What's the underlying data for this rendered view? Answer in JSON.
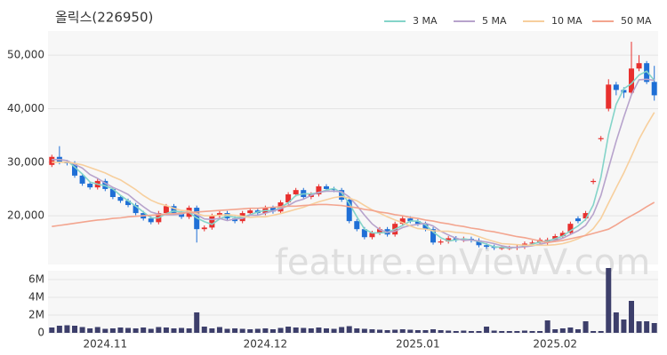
{
  "chart_data": [
    {
      "type": "candlestick",
      "title": "올릭스(226950)",
      "watermark": "feature.enViewV.com",
      "up_color": "#e8302e",
      "down_color": "#1f6fd6",
      "grid": true,
      "legend": "top-right",
      "ylim": [
        10900,
        54500
      ],
      "yticks": [
        {
          "value": 20000,
          "label": "20,000"
        },
        {
          "value": 30000,
          "label": "30,000"
        },
        {
          "value": 40000,
          "label": "40,000"
        },
        {
          "value": 50000,
          "label": "50,000"
        }
      ],
      "open": [
        29500,
        31000,
        30000,
        29800,
        27500,
        26000,
        25300,
        26500,
        25000,
        23500,
        22800,
        22000,
        20500,
        19500,
        18800,
        20500,
        21800,
        20500,
        19800,
        21500,
        17500,
        17800,
        20000,
        20500,
        19500,
        19000,
        20500,
        21000,
        20500,
        21500,
        20800,
        22500,
        24000,
        24800,
        23500,
        24000,
        25500,
        25000,
        24800,
        23000,
        19000,
        17500,
        16000,
        16800,
        17500,
        16500,
        18500,
        19500,
        19000,
        18500,
        17500,
        15000,
        15200,
        15800,
        15500,
        15700,
        15400,
        14500,
        14200,
        14000,
        14000,
        14000,
        14200,
        14800,
        15000,
        15000,
        15500,
        16200,
        16800,
        19500,
        19500,
        26300,
        34300,
        40000,
        44500,
        43500,
        43000,
        47500,
        48500,
        45000
      ],
      "high": [
        31400,
        33000,
        30400,
        30200,
        27900,
        26400,
        26900,
        26900,
        25400,
        23900,
        23200,
        22400,
        20900,
        19900,
        20900,
        22200,
        22200,
        20900,
        21900,
        21900,
        18200,
        20400,
        20900,
        20900,
        19900,
        20900,
        21400,
        21400,
        21900,
        21900,
        22900,
        24400,
        25200,
        25200,
        24400,
        25900,
        25900,
        25400,
        25200,
        23400,
        19400,
        17900,
        17200,
        17900,
        17900,
        18900,
        19900,
        19900,
        19400,
        18900,
        17900,
        15600,
        16200,
        16200,
        16100,
        16100,
        15800,
        14900,
        14600,
        14400,
        14400,
        14600,
        15200,
        15400,
        15900,
        15900,
        16600,
        17200,
        18900,
        19900,
        20900,
        26900,
        34900,
        45500,
        45000,
        44000,
        52500,
        50000,
        48900,
        48000
      ],
      "low": [
        29100,
        29600,
        29400,
        27100,
        25600,
        24900,
        24900,
        24600,
        23100,
        22400,
        21600,
        20100,
        19100,
        18400,
        18400,
        20100,
        20100,
        19400,
        19400,
        15000,
        17100,
        17400,
        19600,
        19100,
        18600,
        18600,
        20100,
        20100,
        20100,
        20400,
        20400,
        22100,
        23600,
        23100,
        23100,
        23600,
        24600,
        24400,
        22600,
        18600,
        17100,
        15600,
        15600,
        16400,
        16100,
        16100,
        18100,
        18600,
        18100,
        17100,
        14600,
        14600,
        14800,
        15100,
        15100,
        15000,
        14100,
        13800,
        13600,
        13600,
        13600,
        13600,
        13800,
        14400,
        14600,
        14600,
        15100,
        15800,
        16400,
        18600,
        19100,
        25900,
        33900,
        39500,
        42500,
        42000,
        42600,
        47000,
        44600,
        41500
      ],
      "close": [
        31000,
        30000,
        29800,
        27500,
        26000,
        25300,
        26500,
        25000,
        23500,
        22800,
        22000,
        20500,
        19500,
        18800,
        20500,
        21800,
        20500,
        19800,
        21500,
        17500,
        17800,
        20000,
        20500,
        19500,
        19000,
        20500,
        21000,
        20500,
        21500,
        20800,
        22500,
        24000,
        24800,
        23500,
        24000,
        25500,
        25000,
        24800,
        23000,
        19000,
        17500,
        16000,
        16800,
        17500,
        16500,
        18500,
        19500,
        19000,
        18500,
        17500,
        15000,
        15200,
        15800,
        15500,
        15700,
        15400,
        14500,
        14200,
        14000,
        14000,
        14000,
        14200,
        14800,
        15000,
        15500,
        15500,
        16200,
        16800,
        18500,
        19000,
        20500,
        26500,
        34500,
        44500,
        43500,
        43000,
        47500,
        48500,
        45000,
        42500
      ],
      "series": [
        {
          "name": "3 MA",
          "color": "#84d4c9",
          "values": [
            30500,
            30500,
            30300,
            29100,
            27800,
            26300,
            25900,
            25600,
            25000,
            23800,
            22800,
            21800,
            20700,
            19600,
            19600,
            20400,
            20900,
            20700,
            20600,
            19600,
            18900,
            18400,
            19400,
            20000,
            19700,
            19700,
            20200,
            20700,
            21000,
            20900,
            21600,
            22400,
            23800,
            24100,
            24100,
            24300,
            24800,
            25100,
            24300,
            22300,
            19800,
            17500,
            16800,
            16800,
            16900,
            17500,
            18200,
            19000,
            19000,
            18300,
            17000,
            15900,
            15300,
            15500,
            15700,
            15500,
            15200,
            14700,
            14200,
            14100,
            14000,
            14100,
            14300,
            14700,
            15100,
            15300,
            15700,
            16200,
            17200,
            18100,
            19300,
            22000,
            27200,
            35200,
            40800,
            43700,
            44700,
            46300,
            47000,
            45300
          ]
        },
        {
          "name": "5 MA",
          "color": "#b7a3cc",
          "values": [
            30500,
            30500,
            30300,
            29600,
            28900,
            27700,
            27000,
            26100,
            25300,
            24700,
            24000,
            22800,
            21700,
            20700,
            20300,
            20200,
            20200,
            20300,
            20800,
            20200,
            19400,
            19300,
            19500,
            19100,
            19400,
            19500,
            20100,
            20100,
            20500,
            20900,
            21300,
            21900,
            22700,
            23100,
            23800,
            24400,
            24600,
            24600,
            24500,
            23500,
            21900,
            20100,
            18500,
            17400,
            16900,
            17100,
            17800,
            18200,
            18400,
            18600,
            18100,
            17100,
            16400,
            15800,
            15400,
            15500,
            15300,
            15100,
            14800,
            14400,
            14100,
            14100,
            14200,
            14400,
            14700,
            15000,
            15400,
            15800,
            16500,
            17200,
            18200,
            20300,
            23800,
            28900,
            33900,
            38400,
            42600,
            45400,
            45500,
            45300
          ]
        },
        {
          "name": "10 MA",
          "color": "#f7cf9d",
          "values": [
            30000,
            30000,
            30000,
            29800,
            29500,
            29000,
            28500,
            28000,
            27300,
            26700,
            25800,
            24900,
            23800,
            22900,
            22300,
            21900,
            21400,
            21000,
            20900,
            20400,
            20000,
            20000,
            20100,
            20200,
            20100,
            19900,
            19700,
            19800,
            19800,
            20100,
            20400,
            20800,
            21200,
            21600,
            22100,
            22600,
            23000,
            23400,
            23600,
            23300,
            22800,
            21900,
            21100,
            20500,
            19800,
            19200,
            18700,
            18100,
            17600,
            17500,
            17200,
            17100,
            17100,
            16900,
            16800,
            16600,
            16100,
            15600,
            15200,
            14800,
            14700,
            14600,
            14500,
            14500,
            14500,
            14500,
            14600,
            14800,
            15200,
            15700,
            16400,
            17600,
            19500,
            22400,
            25200,
            28000,
            31100,
            34300,
            36900,
            39300
          ]
        },
        {
          "name": "50 MA",
          "color": "#f3a58f",
          "values": [
            18000,
            18200,
            18400,
            18600,
            18800,
            19000,
            19200,
            19300,
            19500,
            19600,
            19800,
            19900,
            20000,
            20100,
            20200,
            20300,
            20400,
            20500,
            20600,
            20700,
            20800,
            20900,
            21000,
            21100,
            21200,
            21300,
            21400,
            21400,
            21500,
            21600,
            21700,
            21800,
            21800,
            21900,
            22000,
            22100,
            22100,
            22000,
            21900,
            21700,
            21500,
            21200,
            21000,
            20700,
            20500,
            20200,
            20000,
            19700,
            19500,
            19200,
            19000,
            18700,
            18500,
            18200,
            18000,
            17700,
            17500,
            17200,
            17000,
            16700,
            16400,
            16100,
            15900,
            15600,
            15300,
            15000,
            15200,
            15400,
            15700,
            16000,
            16300,
            16700,
            17100,
            17500,
            18300,
            19200,
            20000,
            20800,
            21700,
            22500
          ]
        }
      ]
    },
    {
      "type": "bar",
      "color": "#3d3f6b",
      "ylim": [
        0,
        7000000
      ],
      "yticks": [
        0,
        {
          "value": 2000000,
          "label": "2M"
        },
        {
          "value": 4000000,
          "label": "4M"
        },
        {
          "value": 6000000,
          "label": "6M"
        }
      ],
      "categories": [
        null,
        null,
        null,
        null,
        null,
        null,
        null,
        "2024.11",
        null,
        null,
        null,
        null,
        null,
        null,
        null,
        null,
        null,
        null,
        null,
        null,
        null,
        null,
        null,
        null,
        null,
        null,
        null,
        null,
        "2024.12",
        null,
        null,
        null,
        null,
        null,
        null,
        null,
        null,
        null,
        null,
        null,
        null,
        null,
        null,
        null,
        null,
        null,
        null,
        null,
        "2025.01",
        null,
        null,
        null,
        null,
        null,
        null,
        null,
        null,
        null,
        null,
        null,
        null,
        null,
        null,
        null,
        null,
        null,
        "2025.02",
        null,
        null,
        null,
        null,
        null,
        null,
        null,
        null,
        null,
        null,
        null,
        null,
        null
      ],
      "values": [
        600000,
        800000,
        850000,
        800000,
        650000,
        500000,
        650000,
        450000,
        500000,
        600000,
        550000,
        500000,
        600000,
        450000,
        650000,
        600000,
        500000,
        550000,
        500000,
        2300000,
        700000,
        500000,
        650000,
        450000,
        500000,
        450000,
        400000,
        450000,
        500000,
        400000,
        550000,
        700000,
        600000,
        550000,
        500000,
        600000,
        500000,
        450000,
        650000,
        750000,
        500000,
        450000,
        400000,
        350000,
        300000,
        350000,
        400000,
        350000,
        300000,
        300000,
        400000,
        300000,
        250000,
        200000,
        250000,
        200000,
        200000,
        700000,
        250000,
        200000,
        200000,
        200000,
        250000,
        200000,
        200000,
        1400000,
        400000,
        500000,
        600000,
        400000,
        1300000,
        200000,
        200000,
        7300000,
        2300000,
        1500000,
        3600000,
        1300000,
        1300000,
        1100000
      ]
    }
  ]
}
